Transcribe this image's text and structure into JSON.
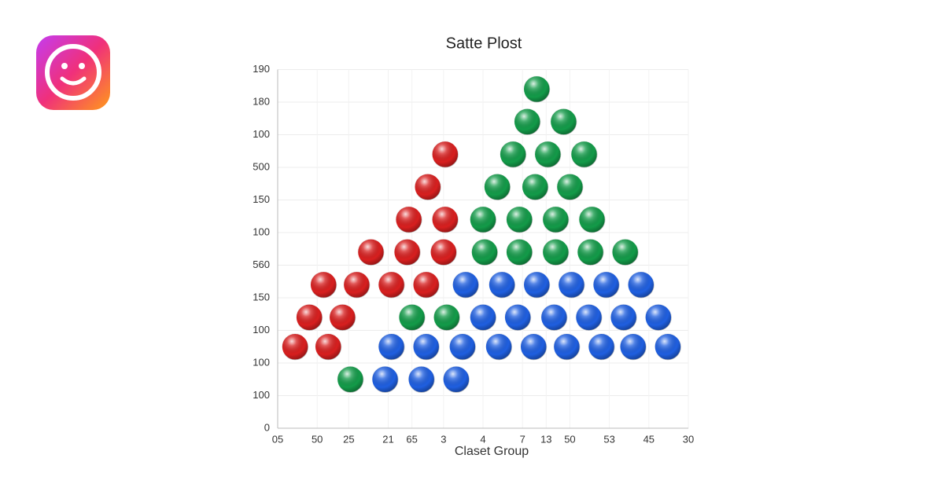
{
  "chart_data": {
    "type": "scatter",
    "title": "Satte Plost",
    "x_label": "Claset Group",
    "xlim": [
      0,
      26
    ],
    "ylim": [
      0,
      11
    ],
    "grid": true,
    "xticks": [
      {
        "value": 0,
        "label": "05"
      },
      {
        "value": 2.5,
        "label": "50"
      },
      {
        "value": 4.5,
        "label": "25"
      },
      {
        "value": 7,
        "label": "21"
      },
      {
        "value": 8.5,
        "label": "65"
      },
      {
        "value": 10.5,
        "label": "3"
      },
      {
        "value": 13,
        "label": "4"
      },
      {
        "value": 15.5,
        "label": "7"
      },
      {
        "value": 17,
        "label": "13"
      },
      {
        "value": 18.5,
        "label": "50"
      },
      {
        "value": 21,
        "label": "53"
      },
      {
        "value": 23.5,
        "label": "45"
      },
      {
        "value": 26,
        "label": "30"
      }
    ],
    "yticks": [
      0,
      {
        "value": 1,
        "label": "100"
      },
      {
        "value": 2,
        "label": "100"
      },
      {
        "value": 3,
        "label": "100"
      },
      {
        "value": 4,
        "label": "150"
      },
      {
        "value": 5,
        "label": "560"
      },
      {
        "value": 6,
        "label": "100"
      },
      {
        "value": 7,
        "label": "150"
      },
      {
        "value": 8,
        "label": "500"
      },
      {
        "value": 9,
        "label": "100"
      },
      {
        "value": 10,
        "label": "180"
      },
      {
        "value": 11,
        "label": "190"
      }
    ],
    "series": [
      {
        "color": "#d81f1f",
        "x": [
          10.6,
          9.5,
          8.3,
          10.6,
          5.9,
          8.2,
          10.5,
          2.9,
          5.0,
          7.2,
          9.4,
          2.0,
          4.1,
          1.1,
          3.2
        ],
        "y": [
          8.4,
          7.4,
          6.4,
          6.4,
          5.4,
          5.4,
          5.4,
          4.4,
          4.4,
          4.4,
          4.4,
          3.4,
          3.4,
          2.5,
          2.5
        ]
      },
      {
        "color": "#139b49",
        "x": [
          16.4,
          15.8,
          18.1,
          14.9,
          17.1,
          19.4,
          13.9,
          16.3,
          18.5,
          13.0,
          15.3,
          17.6,
          19.9,
          13.1,
          15.3,
          17.6,
          19.8,
          22.0,
          8.5,
          10.7,
          4.6
        ],
        "y": [
          10.4,
          9.4,
          9.4,
          8.4,
          8.4,
          8.4,
          7.4,
          7.4,
          7.4,
          6.4,
          6.4,
          6.4,
          6.4,
          5.4,
          5.4,
          5.4,
          5.4,
          5.4,
          3.4,
          3.4,
          1.5
        ]
      },
      {
        "color": "#1f5fe0",
        "x": [
          11.9,
          14.2,
          16.4,
          18.6,
          20.8,
          23.0,
          13.0,
          15.2,
          17.5,
          19.7,
          21.9,
          24.1,
          7.2,
          9.4,
          11.7,
          14.0,
          16.2,
          18.3,
          20.5,
          22.5,
          24.7,
          6.8,
          9.1,
          11.3
        ],
        "y": [
          4.4,
          4.4,
          4.4,
          4.4,
          4.4,
          4.4,
          3.4,
          3.4,
          3.4,
          3.4,
          3.4,
          3.4,
          2.5,
          2.5,
          2.5,
          2.5,
          2.5,
          2.5,
          2.5,
          2.5,
          2.5,
          1.5,
          1.5,
          1.5
        ]
      }
    ]
  }
}
